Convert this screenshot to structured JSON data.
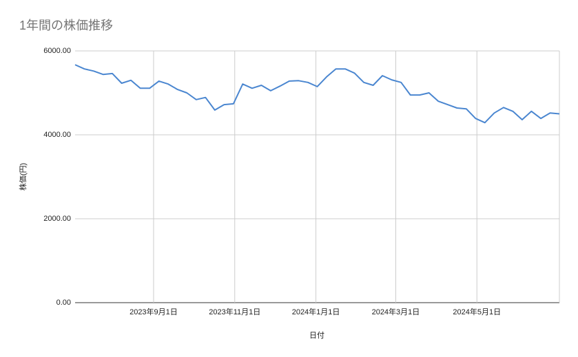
{
  "chart_data": {
    "type": "line",
    "title": "1年間の株価推移",
    "x_label": "日付",
    "y_label": "株価(円)",
    "x": [
      "2023-07-04",
      "2023-07-11",
      "2023-07-18",
      "2023-07-25",
      "2023-08-01",
      "2023-08-08",
      "2023-08-15",
      "2023-08-22",
      "2023-08-29",
      "2023-09-05",
      "2023-09-12",
      "2023-09-19",
      "2023-09-26",
      "2023-10-03",
      "2023-10-10",
      "2023-10-17",
      "2023-10-24",
      "2023-10-31",
      "2023-11-07",
      "2023-11-14",
      "2023-11-21",
      "2023-11-28",
      "2023-12-05",
      "2023-12-12",
      "2023-12-19",
      "2023-12-26",
      "2024-01-02",
      "2024-01-09",
      "2024-01-16",
      "2024-01-23",
      "2024-01-30",
      "2024-02-06",
      "2024-02-13",
      "2024-02-20",
      "2024-02-27",
      "2024-03-05",
      "2024-03-12",
      "2024-03-19",
      "2024-03-26",
      "2024-04-02",
      "2024-04-09",
      "2024-04-16",
      "2024-04-23",
      "2024-04-30",
      "2024-05-07",
      "2024-05-14",
      "2024-05-21",
      "2024-05-28",
      "2024-06-04",
      "2024-06-11",
      "2024-06-18",
      "2024-06-25",
      "2024-07-02"
    ],
    "series": [
      {
        "name": "株価",
        "color": "#4a86d0",
        "values": [
          5670,
          5570,
          5520,
          5440,
          5460,
          5230,
          5300,
          5110,
          5110,
          5280,
          5210,
          5080,
          5000,
          4840,
          4890,
          4590,
          4720,
          4740,
          5210,
          5110,
          5180,
          5050,
          5160,
          5280,
          5290,
          5250,
          5150,
          5380,
          5570,
          5570,
          5470,
          5250,
          5180,
          5410,
          5310,
          5250,
          4950,
          4950,
          5000,
          4800,
          4720,
          4640,
          4620,
          4390,
          4290,
          4520,
          4650,
          4560,
          4360,
          4560,
          4390,
          4520,
          4500
        ]
      }
    ],
    "xlim": [
      "2023-07-04",
      "2024-07-02"
    ],
    "xticks": [
      {
        "value": "2023-09-01",
        "label": "2023年9月1日"
      },
      {
        "value": "2023-11-01",
        "label": "2023年11月1日"
      },
      {
        "value": "2024-01-01",
        "label": "2024年1月1日"
      },
      {
        "value": "2024-03-01",
        "label": "2024年3月1日"
      },
      {
        "value": "2024-05-01",
        "label": "2024年5月1日"
      }
    ],
    "ylim": [
      0,
      6000
    ],
    "yticks": [
      {
        "value": 0,
        "label": "0.00"
      },
      {
        "value": 2000,
        "label": "2000.00"
      },
      {
        "value": 4000,
        "label": "4000.00"
      },
      {
        "value": 6000,
        "label": "6000.00"
      }
    ],
    "grid": true
  }
}
